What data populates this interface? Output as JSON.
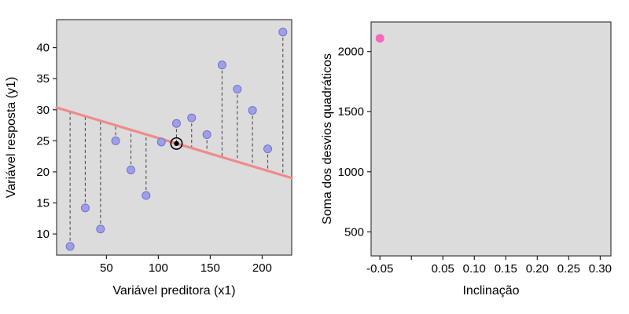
{
  "figure": {
    "background": "#ffffff",
    "plot_background": "#dcdcdc",
    "box_border_color": "#3c3c3c",
    "text_color": "#000000"
  },
  "chart_data": [
    {
      "type": "scatter",
      "title": "",
      "xlabel": "Variável preditora (x1)",
      "ylabel": "Variável resposta (y1)",
      "xlim": [
        2,
        228.5
      ],
      "ylim": [
        6.6,
        44.5
      ],
      "xticks": [
        50,
        100,
        150,
        200
      ],
      "yticks": [
        10,
        15,
        20,
        25,
        30,
        35,
        40
      ],
      "grid": false,
      "legend": null,
      "points_x": [
        15,
        29.6,
        44.3,
        58.9,
        73.6,
        88.2,
        102.9,
        117.5,
        132.1,
        146.8,
        161.4,
        176.1,
        190.7,
        205.4,
        220
      ],
      "points_y": [
        8.0,
        14.2,
        10.8,
        25.0,
        20.3,
        16.2,
        24.8,
        27.8,
        28.7,
        26.0,
        37.2,
        33.3,
        29.9,
        23.7,
        42.5
      ],
      "point_color": "#9f9fe8",
      "point_border_color": "#7373c8",
      "residuals": true,
      "residual_line_color": "#4f4f4f",
      "regression_line": {
        "slope": -0.05,
        "intercept": 30.44,
        "color": "#ef8b8b"
      },
      "mean_point": {
        "x": 117.5,
        "y": 24.56,
        "marker": "circled-black-dot",
        "color": "#000000"
      }
    },
    {
      "type": "scatter",
      "title": "",
      "xlabel": "Inclinação",
      "ylabel": "Soma dos desvios quadráticos",
      "xlim": [
        -0.064,
        0.317
      ],
      "ylim": [
        300,
        2246
      ],
      "xticks": [
        -0.05,
        0.0,
        0.05,
        0.1,
        0.15,
        0.2,
        0.25,
        0.3
      ],
      "xtick_labels": [
        "-0.05",
        "",
        "0.05",
        "0.10",
        "0.15",
        "0.20",
        "0.25",
        "0.30"
      ],
      "yticks": [
        500,
        1000,
        1500,
        2000
      ],
      "grid": false,
      "legend": null,
      "points_x": [
        -0.05
      ],
      "points_y": [
        2110
      ],
      "point_color": "#f767be",
      "point_border_color": "#f767be",
      "residuals": false,
      "regression_line": null,
      "mean_point": null
    }
  ]
}
